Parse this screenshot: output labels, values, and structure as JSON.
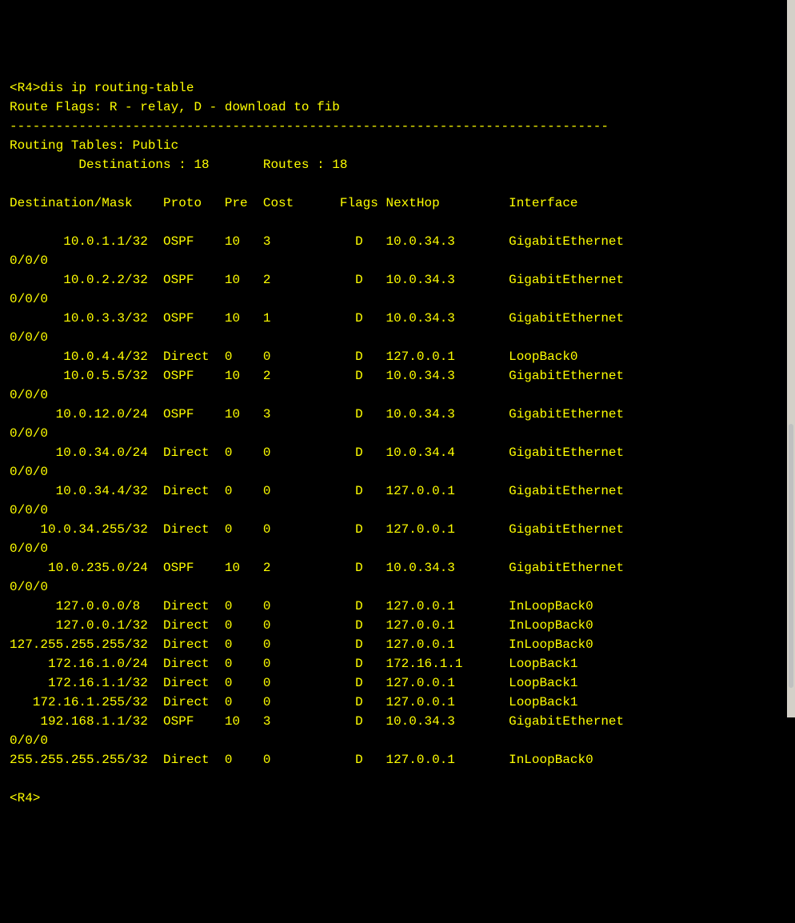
{
  "terminal": {
    "prompt1": "<R4>",
    "command": "dis ip routing-table",
    "header1": "Route Flags: R - relay, D - download to fib",
    "separator": "------------------------------------------------------------------------------",
    "header2": "Routing Tables: Public",
    "summary_dest_label": "         Destinations :",
    "summary_dest_val": "18",
    "summary_routes_label": "       Routes :",
    "summary_routes_val": "18",
    "col_headers": "Destination/Mask    Proto   Pre  Cost      Flags NextHop         Interface",
    "routes": [
      {
        "dest": "       10.0.1.1/32",
        "proto": "OSPF",
        "pre": "10",
        "cost": "3",
        "flags": "D",
        "nexthop": "10.0.34.3",
        "iface": "GigabitEthernet",
        "wrap": "0/0/0"
      },
      {
        "dest": "       10.0.2.2/32",
        "proto": "OSPF",
        "pre": "10",
        "cost": "2",
        "flags": "D",
        "nexthop": "10.0.34.3",
        "iface": "GigabitEthernet",
        "wrap": "0/0/0"
      },
      {
        "dest": "       10.0.3.3/32",
        "proto": "OSPF",
        "pre": "10",
        "cost": "1",
        "flags": "D",
        "nexthop": "10.0.34.3",
        "iface": "GigabitEthernet",
        "wrap": "0/0/0"
      },
      {
        "dest": "       10.0.4.4/32",
        "proto": "Direct",
        "pre": "0",
        "cost": "0",
        "flags": "D",
        "nexthop": "127.0.0.1",
        "iface": "LoopBack0",
        "wrap": ""
      },
      {
        "dest": "       10.0.5.5/32",
        "proto": "OSPF",
        "pre": "10",
        "cost": "2",
        "flags": "D",
        "nexthop": "10.0.34.3",
        "iface": "GigabitEthernet",
        "wrap": "0/0/0"
      },
      {
        "dest": "      10.0.12.0/24",
        "proto": "OSPF",
        "pre": "10",
        "cost": "3",
        "flags": "D",
        "nexthop": "10.0.34.3",
        "iface": "GigabitEthernet",
        "wrap": "0/0/0"
      },
      {
        "dest": "      10.0.34.0/24",
        "proto": "Direct",
        "pre": "0",
        "cost": "0",
        "flags": "D",
        "nexthop": "10.0.34.4",
        "iface": "GigabitEthernet",
        "wrap": "0/0/0"
      },
      {
        "dest": "      10.0.34.4/32",
        "proto": "Direct",
        "pre": "0",
        "cost": "0",
        "flags": "D",
        "nexthop": "127.0.0.1",
        "iface": "GigabitEthernet",
        "wrap": "0/0/0"
      },
      {
        "dest": "    10.0.34.255/32",
        "proto": "Direct",
        "pre": "0",
        "cost": "0",
        "flags": "D",
        "nexthop": "127.0.0.1",
        "iface": "GigabitEthernet",
        "wrap": "0/0/0"
      },
      {
        "dest": "     10.0.235.0/24",
        "proto": "OSPF",
        "pre": "10",
        "cost": "2",
        "flags": "D",
        "nexthop": "10.0.34.3",
        "iface": "GigabitEthernet",
        "wrap": "0/0/0"
      },
      {
        "dest": "      127.0.0.0/8 ",
        "proto": "Direct",
        "pre": "0",
        "cost": "0",
        "flags": "D",
        "nexthop": "127.0.0.1",
        "iface": "InLoopBack0",
        "wrap": ""
      },
      {
        "dest": "      127.0.0.1/32",
        "proto": "Direct",
        "pre": "0",
        "cost": "0",
        "flags": "D",
        "nexthop": "127.0.0.1",
        "iface": "InLoopBack0",
        "wrap": ""
      },
      {
        "dest": "127.255.255.255/32",
        "proto": "Direct",
        "pre": "0",
        "cost": "0",
        "flags": "D",
        "nexthop": "127.0.0.1",
        "iface": "InLoopBack0",
        "wrap": ""
      },
      {
        "dest": "     172.16.1.0/24",
        "proto": "Direct",
        "pre": "0",
        "cost": "0",
        "flags": "D",
        "nexthop": "172.16.1.1",
        "iface": "LoopBack1",
        "wrap": ""
      },
      {
        "dest": "     172.16.1.1/32",
        "proto": "Direct",
        "pre": "0",
        "cost": "0",
        "flags": "D",
        "nexthop": "127.0.0.1",
        "iface": "LoopBack1",
        "wrap": ""
      },
      {
        "dest": "   172.16.1.255/32",
        "proto": "Direct",
        "pre": "0",
        "cost": "0",
        "flags": "D",
        "nexthop": "127.0.0.1",
        "iface": "LoopBack1",
        "wrap": ""
      },
      {
        "dest": "    192.168.1.1/32",
        "proto": "OSPF",
        "pre": "10",
        "cost": "3",
        "flags": "D",
        "nexthop": "10.0.34.3",
        "iface": "GigabitEthernet",
        "wrap": "0/0/0"
      },
      {
        "dest": "255.255.255.255/32",
        "proto": "Direct",
        "pre": "0",
        "cost": "0",
        "flags": "D",
        "nexthop": "127.0.0.1",
        "iface": "InLoopBack0",
        "wrap": ""
      }
    ],
    "prompt2": "<R4>",
    "colors": {
      "bg": "#000000",
      "fg": "#ffff00"
    },
    "col_widths": {
      "dest": 18,
      "proto": 8,
      "pre": 5,
      "cost": 12,
      "flags": 4,
      "nexthop": 16
    }
  }
}
